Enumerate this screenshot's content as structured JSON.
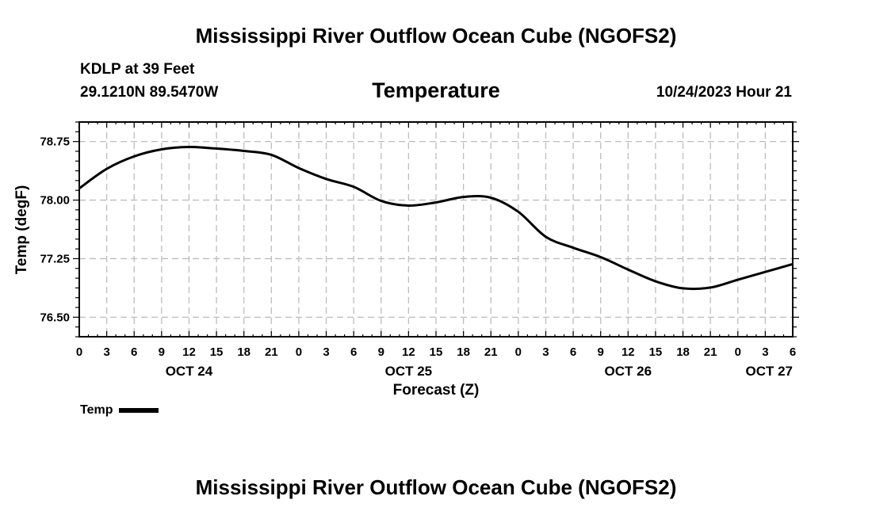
{
  "header": {
    "title": "Mississippi River Outflow Ocean Cube (NGOFS2)",
    "station": "KDLP at 39 Feet",
    "coords": "29.1210N  89.5470W",
    "variable": "Temperature",
    "timestamp": "10/24/2023 Hour 21"
  },
  "footer": {
    "title": "Mississippi River Outflow Ocean Cube (NGOFS2)"
  },
  "legend": {
    "label": "Temp"
  },
  "chart_data": {
    "type": "line",
    "title": "Temperature",
    "xlabel": "Forecast (Z)",
    "ylabel": "Temp (degF)",
    "xlim": [
      0,
      78
    ],
    "ylim": [
      76.25,
      79.0
    ],
    "grid": true,
    "legend": "bottom-left",
    "x_tick_values": [
      0,
      3,
      6,
      9,
      12,
      15,
      18,
      21,
      24,
      27,
      30,
      33,
      36,
      39,
      42,
      45,
      48,
      51,
      54,
      57,
      60,
      63,
      66,
      69,
      72,
      75,
      78
    ],
    "x_tick_labels": [
      "0",
      "3",
      "6",
      "9",
      "12",
      "15",
      "18",
      "21",
      "0",
      "3",
      "6",
      "9",
      "12",
      "15",
      "18",
      "21",
      "0",
      "3",
      "6",
      "9",
      "12",
      "15",
      "18",
      "21",
      "0",
      "3",
      "6"
    ],
    "y_ticks": [
      {
        "value": 76.5,
        "label": "76.50"
      },
      {
        "value": 77.25,
        "label": "77.25"
      },
      {
        "value": 78.0,
        "label": "78.00"
      },
      {
        "value": 78.75,
        "label": "78.75"
      }
    ],
    "day_labels": [
      {
        "x": 12,
        "label": "OCT 24"
      },
      {
        "x": 36,
        "label": "OCT 25"
      },
      {
        "x": 60,
        "label": "OCT 26"
      },
      {
        "x": 78,
        "label": "OCT 27"
      }
    ],
    "series": [
      {
        "name": "Temp",
        "x": [
          0,
          3,
          6,
          9,
          12,
          15,
          18,
          21,
          24,
          27,
          30,
          33,
          36,
          39,
          42,
          45,
          48,
          51,
          54,
          57,
          60,
          63,
          66,
          69,
          72,
          75,
          78
        ],
        "values": [
          78.15,
          78.4,
          78.56,
          78.65,
          78.68,
          78.66,
          78.63,
          78.58,
          78.41,
          78.27,
          78.17,
          77.99,
          77.93,
          77.97,
          78.04,
          78.03,
          77.85,
          77.53,
          77.39,
          77.27,
          77.11,
          76.96,
          76.87,
          76.88,
          76.98,
          77.08,
          77.18
        ]
      }
    ]
  }
}
